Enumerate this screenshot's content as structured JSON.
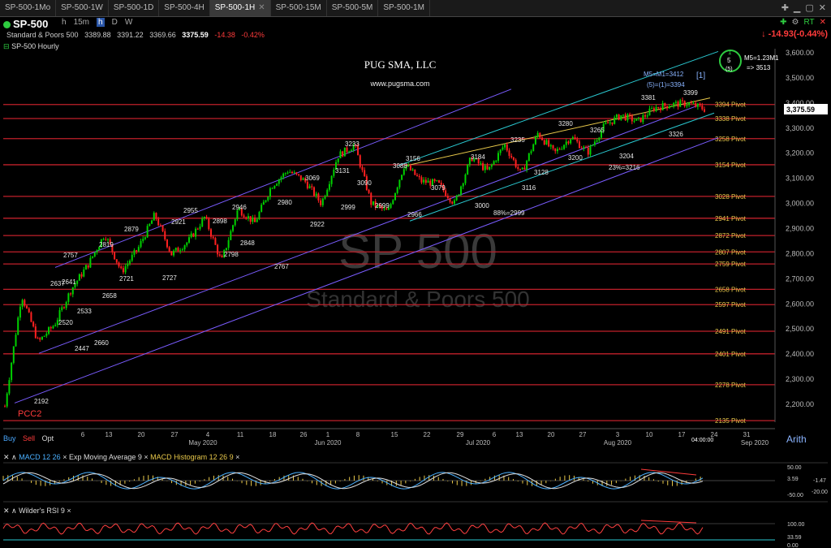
{
  "tabs": [
    {
      "label": "SP-500-1Mo"
    },
    {
      "label": "SP-500-1W"
    },
    {
      "label": "SP-500-1D"
    },
    {
      "label": "SP-500-4H"
    },
    {
      "label": "SP-500-1H"
    },
    {
      "label": "SP-500-15M"
    },
    {
      "label": "SP-500-5M"
    },
    {
      "label": "SP-500-1M"
    }
  ],
  "active_tab": 4,
  "header": {
    "symbol": "SP-500",
    "description": "Standard & Poors 500",
    "open": "3389.88",
    "high": "3391.22",
    "low": "3369.66",
    "close": "3375.59",
    "change": "-14.38",
    "change_pct": "-0.42%",
    "intervals": [
      "h",
      "15m",
      "h",
      "D",
      "W"
    ],
    "right_change": "-14.93(-0.44%)",
    "rt_label": "RT"
  },
  "panel_title": "SP-500 Hourly",
  "chart_texts": {
    "watermark_symbol": "SP 500",
    "watermark_name": "Standard & Poors 500",
    "brand": "PUG SMA, LLC",
    "website": "www.pugsma.com",
    "m5_note": "M5=1.23M1",
    "m5_target": "=> 3513",
    "m5m1": "M5=M1=3412",
    "eq": "(5)=(1)=3394",
    "last_price": "3,375.59",
    "bottom_label": "PCC2",
    "wave_box_label": "[1]",
    "circle_labels": [
      "1",
      "5",
      "(5)"
    ],
    "time_label": "04:00:00"
  },
  "pivots": [
    {
      "label": "3394 Pivot",
      "value": 3394
    },
    {
      "label": "3338 Pivot",
      "value": 3338
    },
    {
      "label": "3258 Pivot",
      "value": 3258
    },
    {
      "label": "3154 Pivot",
      "value": 3154
    },
    {
      "label": "3028 Pivot",
      "value": 3028
    },
    {
      "label": "2941 Pivot",
      "value": 2941
    },
    {
      "label": "2872 Pivot",
      "value": 2872
    },
    {
      "label": "2807 Pivot",
      "value": 2807
    },
    {
      "label": "2759 Pivot",
      "value": 2759
    },
    {
      "label": "2658 Pivot",
      "value": 2658
    },
    {
      "label": "2597 Pivot",
      "value": 2597
    },
    {
      "label": "2491 Pivot",
      "value": 2491
    },
    {
      "label": "2401 Pivot",
      "value": 2401
    },
    {
      "label": "2278 Pivot",
      "value": 2278
    },
    {
      "label": "2135 Pivot",
      "value": 2135
    }
  ],
  "chart_data": {
    "type": "line",
    "title": "SP-500 Hourly",
    "ylim": [
      2150,
      3620
    ],
    "y_ticks": [
      "3,600.00",
      "3,500.00",
      "3,400.00",
      "3,300.00",
      "3,200.00",
      "3,100.00",
      "3,000.00",
      "2,900.00",
      "2,800.00",
      "2,700.00",
      "2,600.00",
      "2,500.00",
      "2,400.00",
      "2,300.00",
      "2,200.00"
    ],
    "x_ticks": [
      "6",
      "13",
      "20",
      "27",
      "May 2020",
      "4",
      "11",
      "18",
      "26",
      "Jun 2020",
      "1",
      "8",
      "15",
      "22",
      "Jul 2020",
      "29",
      "6",
      "13",
      "20",
      "27",
      "Aug 2020",
      "3",
      "10",
      "17",
      "24",
      "31",
      "Sep 2020"
    ],
    "series": [
      {
        "name": "SP-500",
        "x": [
          "Mar 23",
          "Mar 26",
          "Mar 31",
          "Apr 3",
          "Apr 7",
          "Apr 9",
          "Apr 14",
          "Apr 17",
          "Apr 21",
          "Apr 24",
          "Apr 29",
          "May 1",
          "May 5",
          "May 8",
          "May 11",
          "May 14",
          "May 18",
          "May 21",
          "May 26",
          "Jun 1",
          "Jun 3",
          "Jun 8",
          "Jun 11",
          "Jun 15",
          "Jun 18",
          "Jun 23",
          "Jun 26",
          "Jul 1",
          "Jul 6",
          "Jul 10",
          "Jul 14",
          "Jul 17",
          "Jul 22",
          "Jul 24",
          "Jul 28",
          "Jul 31",
          "Aug 4",
          "Aug 7",
          "Aug 11",
          "Aug 14",
          "Aug 18",
          "Aug 21",
          "Aug 24"
        ],
        "values": [
          2192,
          2637,
          2447,
          2520,
          2660,
          2757,
          2879,
          2727,
          2821,
          2955,
          2798,
          2848,
          2946,
          2767,
          2980,
          2922,
          3069,
          3131,
          3090,
          2999,
          3190,
          3233,
          2999,
          2966,
          3156,
          3088,
          3079,
          3000,
          3184,
          3128,
          3235,
          3116,
          3280,
          3200,
          3265,
          3204,
          3310,
          3351,
          3326,
          3381,
          3394,
          3399,
          3376
        ]
      }
    ],
    "wave_labels": [
      "2192",
      "2637",
      "2447",
      "2520",
      "2533",
      "2641",
      "2660",
      "2658",
      "2721",
      "2727",
      "2757",
      "2819",
      "2879",
      "2921",
      "2955",
      "2898",
      "2798",
      "2848",
      "2946",
      "2767",
      "2980",
      "2922",
      "3069",
      "3131",
      "3090",
      "2999",
      "3233",
      "3088",
      "2999",
      "2966",
      "3156",
      "3079",
      "3184",
      "3000",
      "88%=2999",
      "3235",
      "3128",
      "3116",
      "3280",
      "3200",
      "3265",
      "3204",
      "23%=3216",
      "3381",
      "3399",
      "3326"
    ]
  },
  "indicators": {
    "macd": {
      "title": "MACD 12 26",
      "ma": "Exp Moving Average 9",
      "hist": "MACD Histogram 12 26 9",
      "levels": [
        "50.00",
        "3.59",
        "-1.47",
        "-50.00",
        "-20.00"
      ]
    },
    "rsi": {
      "title": "Wilder's RSI 9",
      "levels": [
        "100.00",
        "33.59",
        "0.00"
      ]
    }
  },
  "trade": {
    "buy": "Buy",
    "sell": "Sell",
    "opt": "Opt"
  },
  "scale_mode": "Arith",
  "colors": {
    "price_up": "#00d000",
    "price_down": "#ff2020",
    "pivot": "#c0202a",
    "channel_blue": "#7a5cff",
    "channel_cyan": "#2ac8d0",
    "ma_yellow": "#e8c84a"
  }
}
